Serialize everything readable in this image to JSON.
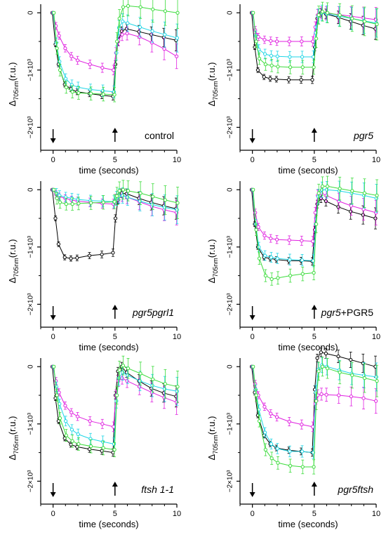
{
  "figure": {
    "xlabel": "time (seconds)",
    "ylabel_main": "Δ",
    "ylabel_sub": "705nm",
    "ylabel_unit": "(r.u.)",
    "x_ticks": [
      "0",
      "5",
      "10"
    ],
    "y_ticks": [
      {
        "value": 0,
        "label": "0"
      },
      {
        "value": -1000,
        "label": "−1×10³"
      },
      {
        "value": -2000,
        "label": "−2×10³"
      }
    ],
    "arrows": {
      "light_on": "down-arrow-icon",
      "light_off": "up-arrow-icon"
    },
    "colors": {
      "black": "#000000",
      "magenta": "#e020e0",
      "cyan": "#1fd6e6",
      "green": "#3cdc3c"
    }
  },
  "chart_data": [
    {
      "type": "line",
      "panel_label": "control",
      "label_italic": false,
      "label_suffix": "",
      "xlabel": "time (seconds)",
      "ylabel": "Δ705nm (r.u.)",
      "xlim": [
        -1,
        10
      ],
      "ylim": [
        -2400,
        150
      ],
      "x": [
        0,
        0.25,
        0.5,
        1,
        1.5,
        2,
        3,
        4,
        4.9,
        5.1,
        5.3,
        5.6,
        6,
        7,
        8,
        9,
        10
      ],
      "series": [
        {
          "color": "#000000",
          "values": [
            0,
            -550,
            -900,
            -1250,
            -1330,
            -1380,
            -1410,
            -1440,
            -1460,
            -900,
            -500,
            -320,
            -280,
            -330,
            -380,
            -430,
            -480
          ]
        },
        {
          "color": "#e020e0",
          "values": [
            0,
            -230,
            -400,
            -620,
            -760,
            -830,
            -900,
            -960,
            -1000,
            -700,
            -480,
            -380,
            -360,
            -420,
            -520,
            -630,
            -760
          ]
        },
        {
          "color": "#1fd6e6",
          "values": [
            0,
            -520,
            -850,
            -1150,
            -1260,
            -1300,
            -1340,
            -1360,
            -1380,
            -700,
            -260,
            -150,
            -180,
            -250,
            -320,
            -380,
            -440
          ]
        },
        {
          "color": "#3cdc3c",
          "values": [
            0,
            -620,
            -1000,
            -1300,
            -1380,
            -1400,
            -1410,
            -1420,
            -1430,
            -500,
            -100,
            100,
            120,
            100,
            60,
            30,
            0
          ]
        }
      ]
    },
    {
      "type": "line",
      "panel_label": "pgr5",
      "label_italic": true,
      "label_suffix": "",
      "xlabel": "time (seconds)",
      "ylabel": "Δ705nm (r.u.)",
      "xlim": [
        -1,
        10
      ],
      "ylim": [
        -2400,
        150
      ],
      "x": [
        0,
        0.25,
        0.5,
        1,
        1.5,
        2,
        3,
        4,
        4.9,
        5.1,
        5.3,
        5.6,
        6,
        7,
        8,
        9,
        10
      ],
      "series": [
        {
          "color": "#000000",
          "values": [
            0,
            -600,
            -1000,
            -1120,
            -1150,
            -1160,
            -1170,
            -1170,
            -1170,
            -600,
            -100,
            0,
            -20,
            -80,
            -150,
            -220,
            -280
          ]
        },
        {
          "color": "#e020e0",
          "values": [
            0,
            -300,
            -420,
            -470,
            -490,
            -500,
            -500,
            -500,
            -500,
            -250,
            -40,
            0,
            -10,
            -30,
            -60,
            -90,
            -120
          ]
        },
        {
          "color": "#1fd6e6",
          "values": [
            0,
            -400,
            -640,
            -720,
            -750,
            -760,
            -770,
            -770,
            -770,
            -350,
            -60,
            0,
            -20,
            -60,
            -100,
            -140,
            -180
          ]
        },
        {
          "color": "#3cdc3c",
          "values": [
            0,
            -500,
            -800,
            -900,
            -920,
            -940,
            -950,
            -950,
            -950,
            -450,
            -40,
            20,
            0,
            -40,
            -100,
            -150,
            -200
          ]
        }
      ]
    },
    {
      "type": "line",
      "panel_label": "pgr5pgrl1",
      "label_italic": true,
      "label_suffix": "",
      "xlabel": "time (seconds)",
      "ylabel": "Δ705nm (r.u.)",
      "xlim": [
        -1,
        10
      ],
      "ylim": [
        -2400,
        150
      ],
      "x": [
        0,
        0.25,
        0.5,
        1,
        1.5,
        2,
        3,
        4,
        4.9,
        5.1,
        5.3,
        5.6,
        6,
        7,
        8,
        9,
        10
      ],
      "series": [
        {
          "color": "#000000",
          "values": [
            0,
            -500,
            -950,
            -1180,
            -1200,
            -1190,
            -1150,
            -1130,
            -1100,
            -500,
            -180,
            -60,
            -70,
            -150,
            -220,
            -280,
            -330
          ]
        },
        {
          "color": "#e020e0",
          "values": [
            0,
            -80,
            -120,
            -150,
            -180,
            -200,
            -220,
            -240,
            -250,
            -170,
            -120,
            -100,
            -130,
            -210,
            -290,
            -350,
            -400
          ]
        },
        {
          "color": "#1fd6e6",
          "values": [
            0,
            -60,
            -100,
            -130,
            -150,
            -170,
            -190,
            -200,
            -210,
            -150,
            -110,
            -100,
            -130,
            -200,
            -260,
            -310,
            -350
          ]
        },
        {
          "color": "#3cdc3c",
          "values": [
            0,
            -150,
            -220,
            -250,
            -250,
            -240,
            -230,
            -220,
            -210,
            -110,
            -20,
            0,
            -20,
            -60,
            -120,
            -180,
            -230
          ]
        }
      ]
    },
    {
      "type": "line",
      "panel_label": "pgr5",
      "label_italic": true,
      "label_suffix": "+PGR5",
      "xlabel": "time (seconds)",
      "ylabel": "Δ705nm (r.u.)",
      "xlim": [
        -1,
        10
      ],
      "ylim": [
        -2400,
        150
      ],
      "x": [
        0,
        0.25,
        0.5,
        1,
        1.5,
        2,
        3,
        4,
        4.9,
        5.1,
        5.3,
        5.6,
        6,
        7,
        8,
        9,
        10
      ],
      "series": [
        {
          "color": "#000000",
          "values": [
            0,
            -600,
            -1000,
            -1180,
            -1200,
            -1220,
            -1240,
            -1240,
            -1250,
            -700,
            -250,
            -150,
            -200,
            -300,
            -380,
            -440,
            -500
          ]
        },
        {
          "color": "#e020e0",
          "values": [
            0,
            -400,
            -650,
            -800,
            -850,
            -870,
            -880,
            -890,
            -900,
            -400,
            -100,
            -60,
            -100,
            -200,
            -280,
            -340,
            -400
          ]
        },
        {
          "color": "#1fd6e6",
          "values": [
            0,
            -600,
            -1000,
            -1150,
            -1180,
            -1200,
            -1220,
            -1230,
            -1240,
            -600,
            -120,
            0,
            0,
            -20,
            -60,
            -100,
            -150
          ]
        },
        {
          "color": "#3cdc3c",
          "values": [
            0,
            -700,
            -1200,
            -1500,
            -1560,
            -1540,
            -1500,
            -1470,
            -1450,
            -600,
            -60,
            60,
            60,
            20,
            -20,
            -60,
            -100
          ]
        }
      ]
    },
    {
      "type": "line",
      "panel_label": "ftsh 1-1",
      "label_italic": true,
      "label_suffix": "",
      "xlabel": "time (seconds)",
      "ylabel": "Δ705nm (r.u.)",
      "xlim": [
        -1,
        10
      ],
      "ylim": [
        -2400,
        150
      ],
      "x": [
        0,
        0.25,
        0.5,
        1,
        1.5,
        2,
        3,
        4,
        4.9,
        5.1,
        5.3,
        5.6,
        6,
        7,
        8,
        9,
        10
      ],
      "series": [
        {
          "color": "#000000",
          "values": [
            0,
            -550,
            -950,
            -1250,
            -1360,
            -1400,
            -1440,
            -1470,
            -1500,
            -500,
            -80,
            0,
            -100,
            -250,
            -380,
            -460,
            -520
          ]
        },
        {
          "color": "#e020e0",
          "values": [
            0,
            -250,
            -450,
            -680,
            -800,
            -870,
            -950,
            -1000,
            -1050,
            -500,
            -250,
            -200,
            -250,
            -350,
            -450,
            -540,
            -620
          ]
        },
        {
          "color": "#1fd6e6",
          "values": [
            0,
            -350,
            -650,
            -950,
            -1100,
            -1180,
            -1260,
            -1310,
            -1350,
            -600,
            -200,
            -100,
            -150,
            -250,
            -330,
            -390,
            -430
          ]
        },
        {
          "color": "#3cdc3c",
          "values": [
            0,
            -500,
            -900,
            -1200,
            -1300,
            -1350,
            -1390,
            -1420,
            -1450,
            -500,
            -60,
            20,
            -30,
            -120,
            -220,
            -300,
            -350
          ]
        }
      ]
    },
    {
      "type": "line",
      "panel_label": "pgr5ftsh",
      "label_italic": true,
      "label_suffix": "",
      "xlabel": "time (seconds)",
      "ylabel": "Δ705nm (r.u.)",
      "xlim": [
        -1,
        10
      ],
      "ylim": [
        -2400,
        150
      ],
      "x": [
        0,
        0.25,
        0.5,
        1,
        1.5,
        2,
        3,
        4,
        4.9,
        5.1,
        5.3,
        5.6,
        6,
        7,
        8,
        9,
        10
      ],
      "series": [
        {
          "color": "#000000",
          "values": [
            0,
            -450,
            -850,
            -1200,
            -1350,
            -1420,
            -1460,
            -1480,
            -1500,
            -400,
            150,
            250,
            230,
            180,
            120,
            60,
            0
          ]
        },
        {
          "color": "#e020e0",
          "values": [
            0,
            -300,
            -500,
            -700,
            -820,
            -880,
            -960,
            -1010,
            -1050,
            -650,
            -500,
            -480,
            -490,
            -500,
            -520,
            -550,
            -600
          ]
        },
        {
          "color": "#1fd6e6",
          "values": [
            0,
            -400,
            -750,
            -1150,
            -1350,
            -1430,
            -1480,
            -1480,
            -1500,
            -450,
            -50,
            30,
            0,
            -60,
            -120,
            -150,
            -180
          ]
        },
        {
          "color": "#3cdc3c",
          "values": [
            0,
            -500,
            -950,
            -1450,
            -1600,
            -1680,
            -1730,
            -1750,
            -1750,
            -600,
            -80,
            0,
            -30,
            -100,
            -150,
            -200,
            -250
          ]
        }
      ]
    }
  ]
}
